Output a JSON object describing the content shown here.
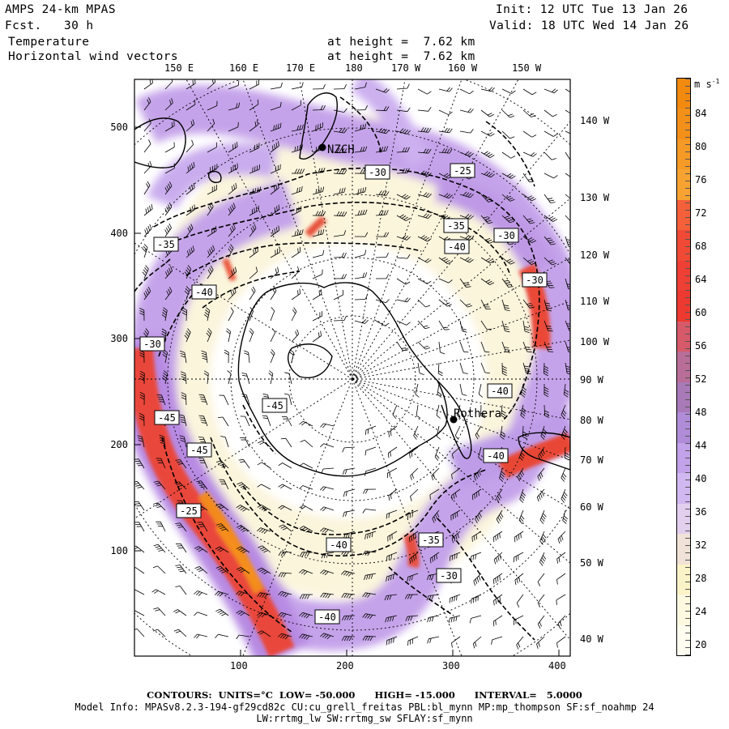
{
  "header": {
    "model": "AMPS 24-km MPAS",
    "forecast": "Fcst.   30 h",
    "init": "Init: 12 UTC Tue 13 Jan 26",
    "valid": "Valid: 18 UTC Wed 14 Jan 26",
    "field1": "Temperature",
    "field2": "Horizontal wind vectors",
    "height1": "at height =  7.62 km",
    "height2": "at height =  7.62 km"
  },
  "axes": {
    "x_ticks": [
      "100",
      "200",
      "300",
      "400"
    ],
    "y_ticks": [
      "100",
      "200",
      "300",
      "400",
      "500"
    ],
    "top_lon": [
      "150 E",
      "160 E",
      "170 E",
      "180",
      "170 W",
      "160 W",
      "150 W"
    ],
    "right_lon": [
      "140 W",
      "130 W",
      "120 W",
      "110 W",
      "100 W",
      "90 W",
      "80 W",
      "70 W",
      "60 W",
      "50 W",
      "40 W"
    ]
  },
  "map_labels": {
    "station1": "NZCH",
    "station2": "Rothera",
    "contours": [
      "-30",
      "-25",
      "-35",
      "-40",
      "-30",
      "-30",
      "-30",
      "-40",
      "-40",
      "-40",
      "-45",
      "-45",
      "-45",
      "-25",
      "-40",
      "-35",
      "-30",
      "-35",
      "-40"
    ]
  },
  "colorbar": {
    "unit": "m s",
    "unit_exp": "-1",
    "levels": [
      "84",
      "80",
      "76",
      "72",
      "68",
      "64",
      "60",
      "56",
      "52",
      "48",
      "44",
      "40",
      "36",
      "32",
      "28",
      "24",
      "20"
    ],
    "colors": [
      "#f28a10",
      "#f39019",
      "#f59a26",
      "#f6a331",
      "#f4603a",
      "#f04a36",
      "#ee4034",
      "#ec3a30",
      "#d65a6a",
      "#b86e98",
      "#a87ab7",
      "#b08cd8",
      "#c2a2e8",
      "#d2b8f0",
      "#e2cfee",
      "#f0e2d6",
      "#fbf3c8",
      "#fdf8e0",
      "#fffdf0"
    ]
  },
  "footer": {
    "contours": "CONTOURS:  UNITS=°C  LOW= -50.000      HIGH= -15.000      INTERVAL=   5.0000",
    "model_info": "Model Info: MPASv8.2.3-194-gf29cd82c CU:cu_grell_freitas PBL:bl_mynn MP:mp_thompson SF:sf_noahmp 24",
    "physics": "LW:rrtmg_lw SW:rrtmg_sw SFLAY:sf_mynn"
  }
}
